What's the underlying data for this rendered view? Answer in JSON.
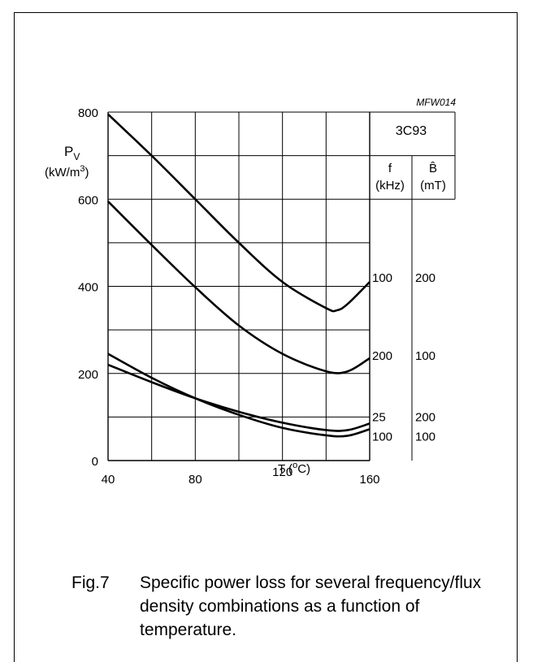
{
  "figure": {
    "code": "MFW014",
    "fig_label": "Fig.7",
    "caption": "Specific power loss for several frequency/flux density combinations as a function of temperature."
  },
  "chart_data": {
    "type": "line",
    "title": "",
    "xlabel": "T (°C)",
    "ylabel": "Pv (kW/m³)",
    "xlim": [
      40,
      160
    ],
    "ylim": [
      0,
      800
    ],
    "xticks": [
      40,
      80,
      120,
      160
    ],
    "yticks": [
      0,
      200,
      400,
      600,
      800
    ],
    "grid": true,
    "legend": {
      "title": "3C93",
      "col_f": "f",
      "col_f_unit": "(kHz)",
      "col_b": "B̂",
      "col_b_unit": "(mT)"
    },
    "series": [
      {
        "f": "100",
        "B": "200",
        "x": [
          40,
          60,
          80,
          100,
          120,
          140,
          145,
          150,
          160
        ],
        "y": [
          795,
          700,
          600,
          500,
          410,
          350,
          345,
          360,
          410
        ]
      },
      {
        "f": "200",
        "B": "100",
        "x": [
          40,
          60,
          80,
          100,
          120,
          140,
          150,
          160
        ],
        "y": [
          595,
          495,
          398,
          310,
          245,
          205,
          205,
          235
        ]
      },
      {
        "f": "25",
        "B": "200",
        "x": [
          40,
          60,
          80,
          100,
          120,
          140,
          150,
          160
        ],
        "y": [
          220,
          180,
          143,
          112,
          87,
          70,
          70,
          85
        ]
      },
      {
        "f": "100",
        "B": "100",
        "x": [
          40,
          60,
          80,
          100,
          120,
          140,
          150,
          160
        ],
        "y": [
          245,
          190,
          143,
          105,
          75,
          58,
          57,
          72
        ]
      }
    ]
  }
}
